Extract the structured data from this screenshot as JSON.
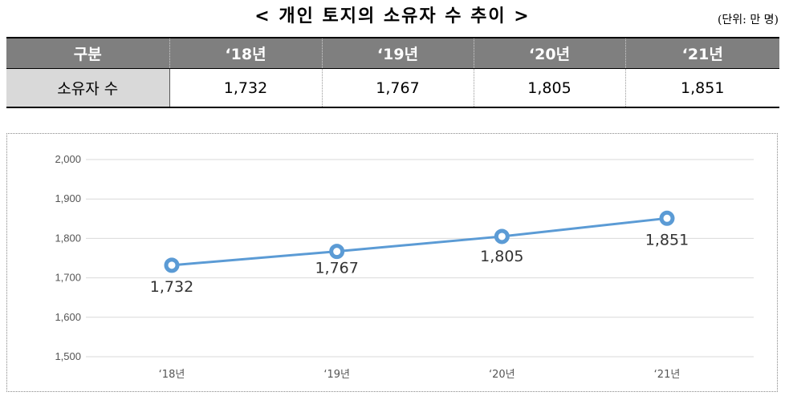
{
  "header": {
    "title": "< 개인 토지의 소유자 수 추이 >",
    "unit": "(단위: 만 명)"
  },
  "table": {
    "row_header": "구분",
    "columns": [
      "‘18년",
      "‘19년",
      "‘20년",
      "‘21년"
    ],
    "row_label": "소유자 수",
    "values": [
      "1,732",
      "1,767",
      "1,805",
      "1,851"
    ]
  },
  "chart_data": {
    "type": "line",
    "categories": [
      "‘18년",
      "‘19년",
      "‘20년",
      "‘21년"
    ],
    "series": [
      {
        "values": [
          1732,
          1767,
          1805,
          1851
        ],
        "color": "#5b9bd5"
      }
    ],
    "data_labels": [
      "1,732",
      "1,767",
      "1,805",
      "1,851"
    ],
    "y_ticks": [
      "1,500",
      "1,600",
      "1,700",
      "1,800",
      "1,900",
      "2,000"
    ],
    "ylim": [
      1500,
      2000
    ],
    "y_step": 100,
    "grid": true,
    "title": "",
    "xlabel": "",
    "ylabel": ""
  }
}
